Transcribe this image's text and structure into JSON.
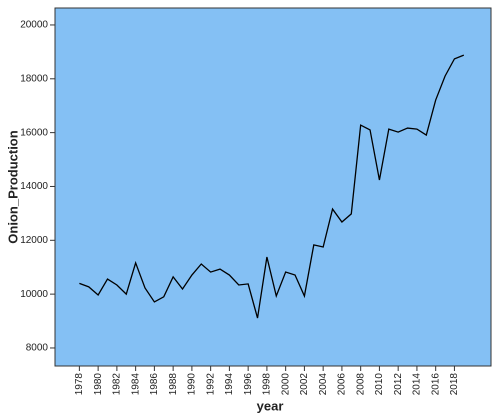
{
  "chart_data": {
    "type": "line",
    "x_label": "year",
    "y_label": "Onion_Production",
    "x": [
      1978,
      1979,
      1980,
      1981,
      1982,
      1983,
      1984,
      1985,
      1986,
      1987,
      1988,
      1989,
      1990,
      1991,
      1992,
      1993,
      1994,
      1995,
      1996,
      1997,
      1998,
      1999,
      2000,
      2001,
      2002,
      2003,
      2004,
      2005,
      2006,
      2007,
      2008,
      2009,
      2010,
      2011,
      2012,
      2013,
      2014,
      2015,
      2016,
      2017,
      2018,
      2019
    ],
    "series": [
      {
        "color": "#000000",
        "values": [
          10400,
          10270,
          9970,
          10560,
          10340,
          10000,
          11160,
          10230,
          9710,
          9900,
          10640,
          10190,
          10710,
          11120,
          10820,
          10930,
          10710,
          10340,
          10380,
          9110,
          11380,
          9930,
          10820,
          10710,
          9930,
          11830,
          11750,
          13160,
          12680,
          12980,
          16280,
          16100,
          14240,
          16130,
          16020,
          16170,
          16130,
          15910,
          17210,
          18100,
          18740,
          18880
        ]
      }
    ],
    "xlim": [
      1975.4,
      2021.9
    ],
    "xticks": [
      1978,
      1980,
      1982,
      1984,
      1986,
      1988,
      1990,
      1992,
      1994,
      1996,
      1998,
      2000,
      2002,
      2004,
      2006,
      2008,
      2010,
      2012,
      2014,
      2016,
      2018
    ],
    "ylim": [
      7330,
      20630
    ],
    "yticks": [
      8000,
      10000,
      12000,
      14000,
      16000,
      18000,
      20000
    ],
    "background": "#84c0f4"
  }
}
